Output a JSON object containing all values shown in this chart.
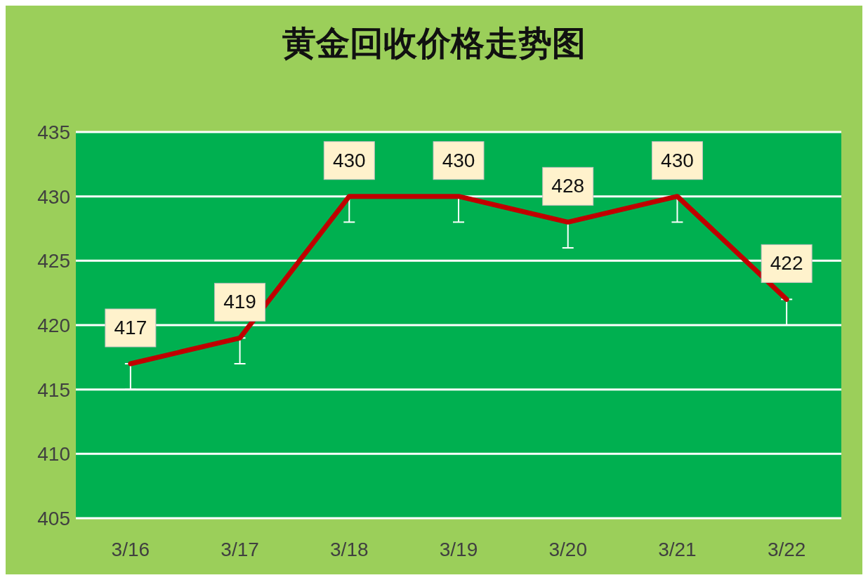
{
  "chart_data": {
    "type": "line",
    "title": "黄金回收价格走势图",
    "categories": [
      "3/16",
      "3/17",
      "3/18",
      "3/19",
      "3/20",
      "3/21",
      "3/22"
    ],
    "series": [
      {
        "color": "#c00000",
        "values": [
          417,
          419,
          430,
          430,
          428,
          430,
          422
        ],
        "errors": [
          [
            415,
            417
          ],
          [
            417,
            419
          ],
          [
            428,
            430
          ],
          [
            428,
            430
          ],
          [
            426,
            428
          ],
          [
            428,
            430
          ],
          [
            420,
            422
          ]
        ]
      }
    ],
    "ylim": [
      405,
      435
    ],
    "yticks": [
      405,
      410,
      415,
      420,
      425,
      430,
      435
    ],
    "grid": "y",
    "marker": "none",
    "line_style": "solid",
    "data_labels": true
  }
}
